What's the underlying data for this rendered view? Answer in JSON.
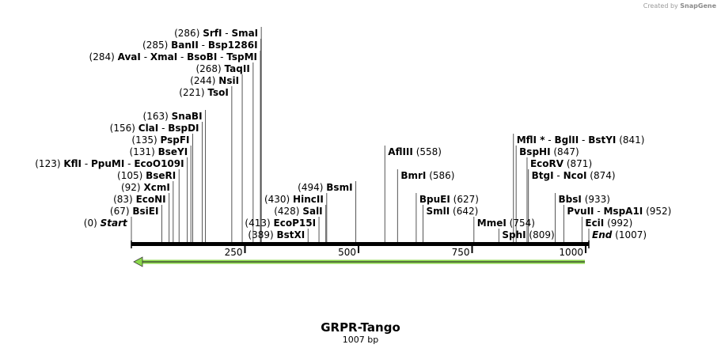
{
  "credit": {
    "prefix": "Created by",
    "brand": "SnapGene"
  },
  "title": "GRPR-Tango",
  "length_label": "1007 bp",
  "sequence_length": 1007,
  "ruler_ticks": [
    250,
    500,
    750,
    1000
  ],
  "feature": {
    "name": "GRPR-Tango arrow",
    "start": 1,
    "end": 1007,
    "direction": "reverse",
    "color": "#8bd94a"
  },
  "sites": [
    {
      "row": 0,
      "anchor": "right",
      "pos": 286,
      "pos_label": "(286)",
      "names": [
        "SrfI",
        "SmaI"
      ]
    },
    {
      "row": 1,
      "anchor": "right",
      "pos": 285,
      "pos_label": "(285)",
      "names": [
        "BanII",
        "Bsp1286I"
      ]
    },
    {
      "row": 2,
      "anchor": "right",
      "pos": 284,
      "pos_label": "(284)",
      "names": [
        "AvaI",
        "XmaI",
        "BsoBI",
        "TspMI"
      ]
    },
    {
      "row": 3,
      "anchor": "right",
      "pos": 268,
      "pos_label": "(268)",
      "names": [
        "TaqII"
      ]
    },
    {
      "row": 4,
      "anchor": "right",
      "pos": 244,
      "pos_label": "(244)",
      "names": [
        "NsiI"
      ]
    },
    {
      "row": 5,
      "anchor": "right",
      "pos": 221,
      "pos_label": "(221)",
      "names": [
        "TsoI"
      ]
    },
    {
      "row": 7,
      "anchor": "right",
      "pos": 163,
      "pos_label": "(163)",
      "names": [
        "SnaBI"
      ]
    },
    {
      "row": 8,
      "anchor": "right",
      "pos": 156,
      "pos_label": "(156)",
      "names": [
        "ClaI",
        "BspDI"
      ]
    },
    {
      "row": 9,
      "anchor": "right",
      "pos": 135,
      "pos_label": "(135)",
      "names": [
        "PspFI"
      ]
    },
    {
      "row": 10,
      "anchor": "right",
      "pos": 131,
      "pos_label": "(131)",
      "names": [
        "BseYI"
      ]
    },
    {
      "row": 11,
      "anchor": "right",
      "pos": 123,
      "pos_label": "(123)",
      "names": [
        "KflI",
        "PpuMI",
        "EcoO109I"
      ]
    },
    {
      "row": 12,
      "anchor": "right",
      "pos": 105,
      "pos_label": "(105)",
      "names": [
        "BseRI"
      ]
    },
    {
      "row": 13,
      "anchor": "right",
      "pos": 92,
      "pos_label": "(92)",
      "names": [
        "XcmI"
      ]
    },
    {
      "row": 14,
      "anchor": "right",
      "pos": 83,
      "pos_label": "(83)",
      "names": [
        "EcoNI"
      ]
    },
    {
      "row": 15,
      "anchor": "right",
      "pos": 67,
      "pos_label": "(67)",
      "names": [
        "BsiEI"
      ]
    },
    {
      "row": 16,
      "anchor": "right",
      "pos": 0,
      "pos_label": "(0)",
      "names": [
        "Start"
      ],
      "italic": true
    },
    {
      "row": 13,
      "anchor": "right",
      "pos": 494,
      "pos_label": "(494)",
      "names": [
        "BsmI"
      ]
    },
    {
      "row": 14,
      "anchor": "right",
      "pos": 430,
      "pos_label": "(430)",
      "names": [
        "HincII"
      ]
    },
    {
      "row": 15,
      "anchor": "right",
      "pos": 428,
      "pos_label": "(428)",
      "names": [
        "SalI"
      ]
    },
    {
      "row": 16,
      "anchor": "right",
      "pos": 413,
      "pos_label": "(413)",
      "names": [
        "EcoP15I"
      ]
    },
    {
      "row": 17,
      "anchor": "right",
      "pos": 389,
      "pos_label": "(389)",
      "names": [
        "BstXI"
      ]
    },
    {
      "row": 10,
      "anchor": "left",
      "pos": 558,
      "pos_label": "(558)",
      "names": [
        "AflIII"
      ]
    },
    {
      "row": 12,
      "anchor": "left",
      "pos": 586,
      "pos_label": "(586)",
      "names": [
        "BmrI"
      ]
    },
    {
      "row": 14,
      "anchor": "left",
      "pos": 627,
      "pos_label": "(627)",
      "names": [
        "BpuEI"
      ]
    },
    {
      "row": 15,
      "anchor": "left",
      "pos": 642,
      "pos_label": "(642)",
      "names": [
        "SmlI"
      ]
    },
    {
      "row": 16,
      "anchor": "left",
      "pos": 754,
      "pos_label": "(754)",
      "names": [
        "MmeI"
      ]
    },
    {
      "row": 17,
      "anchor": "left",
      "pos": 809,
      "pos_label": "(809)",
      "names": [
        "SphI"
      ]
    },
    {
      "row": 9,
      "anchor": "left",
      "pos": 841,
      "pos_label": "(841)",
      "names": [
        "MflI *",
        "BglII",
        "BstYI"
      ]
    },
    {
      "row": 10,
      "anchor": "left",
      "pos": 847,
      "pos_label": "(847)",
      "names": [
        "BspHI"
      ]
    },
    {
      "row": 11,
      "anchor": "left",
      "pos": 871,
      "pos_label": "(871)",
      "names": [
        "EcoRV"
      ]
    },
    {
      "row": 12,
      "anchor": "left",
      "pos": 874,
      "pos_label": "(874)",
      "names": [
        "BtgI",
        "NcoI"
      ]
    },
    {
      "row": 14,
      "anchor": "left",
      "pos": 933,
      "pos_label": "(933)",
      "names": [
        "BbsI"
      ]
    },
    {
      "row": 15,
      "anchor": "left",
      "pos": 952,
      "pos_label": "(952)",
      "names": [
        "PvuII",
        "MspA1I"
      ]
    },
    {
      "row": 16,
      "anchor": "left",
      "pos": 992,
      "pos_label": "(992)",
      "names": [
        "EciI"
      ]
    },
    {
      "row": 17,
      "anchor": "left",
      "pos": 1007,
      "pos_label": "(1007)",
      "names": [
        "End"
      ],
      "italic": true
    }
  ]
}
